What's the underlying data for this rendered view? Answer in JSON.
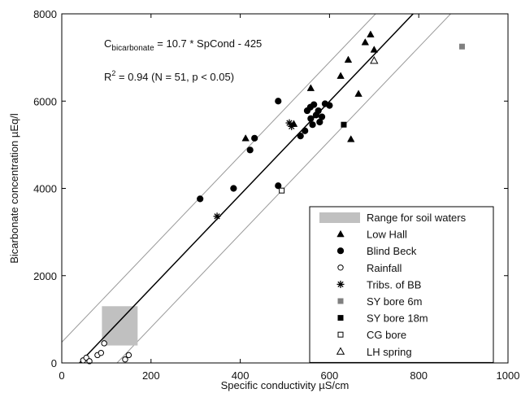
{
  "chart_data": {
    "type": "scatter",
    "xlabel": "Specific conductivity  µS/cm",
    "ylabel": "Bicarbonate concentration  µEq/l",
    "xlim": [
      0,
      1000
    ],
    "ylim": [
      0,
      8000
    ],
    "x_ticks": [
      "0",
      "200",
      "400",
      "600",
      "800",
      "1000"
    ],
    "y_ticks": [
      "0",
      "2000",
      "4000",
      "6000",
      "8000"
    ],
    "grid": false,
    "legend_position": "bottom-right",
    "annotations": {
      "eq_prefix": "C",
      "eq_sub": "bicarbonate",
      "eq_rest": " = 10.7 * SpCond - 425",
      "r2_prefix": "R",
      "r2_sup": "2",
      "r2_rest": " = 0.94 (N = 51, p < 0.05)"
    },
    "regression": {
      "slope": 10.7,
      "intercept": -425
    },
    "bounds": [
      {
        "slope": 10.7,
        "intercept": 475
      },
      {
        "slope": 10.7,
        "intercept": -1325
      }
    ],
    "soil_range": {
      "label": "Range for soil waters",
      "x": [
        90,
        170
      ],
      "y": [
        400,
        1300
      ]
    },
    "series": [
      {
        "name": "Low Hall",
        "marker": "triangle",
        "color": "#000000",
        "points": [
          [
            412,
            5150
          ],
          [
            520,
            5480
          ],
          [
            558,
            6300
          ],
          [
            625,
            6580
          ],
          [
            642,
            6950
          ],
          [
            648,
            5130
          ],
          [
            665,
            6170
          ],
          [
            680,
            7350
          ],
          [
            692,
            7530
          ],
          [
            700,
            7180
          ]
        ]
      },
      {
        "name": "Blind Beck",
        "marker": "circle",
        "color": "#000000",
        "points": [
          [
            310,
            3760
          ],
          [
            385,
            4000
          ],
          [
            422,
            4880
          ],
          [
            432,
            5150
          ],
          [
            485,
            6000
          ],
          [
            485,
            4060
          ],
          [
            535,
            5200
          ],
          [
            545,
            5320
          ],
          [
            550,
            5780
          ],
          [
            557,
            5860
          ],
          [
            558,
            5600
          ],
          [
            562,
            5460
          ],
          [
            565,
            5920
          ],
          [
            570,
            5680
          ],
          [
            575,
            5780
          ],
          [
            578,
            5520
          ],
          [
            583,
            5640
          ],
          [
            590,
            5940
          ],
          [
            600,
            5900
          ]
        ]
      },
      {
        "name": "Rainfall",
        "marker": "open-circle",
        "color": "#000000",
        "points": [
          [
            48,
            60
          ],
          [
            55,
            120
          ],
          [
            62,
            40
          ],
          [
            80,
            180
          ],
          [
            88,
            230
          ],
          [
            95,
            450
          ],
          [
            142,
            80
          ],
          [
            150,
            180
          ]
        ]
      },
      {
        "name": "Tribs. of BB",
        "marker": "asterisk",
        "color": "#000000",
        "points": [
          [
            348,
            3360
          ],
          [
            510,
            5500
          ],
          [
            515,
            5420
          ]
        ]
      },
      {
        "name": "SY bore 6m",
        "marker": "square",
        "color": "#808080",
        "points": [
          [
            897,
            7250
          ]
        ]
      },
      {
        "name": "SY bore 18m",
        "marker": "square",
        "color": "#000000",
        "points": [
          [
            632,
            5460
          ]
        ]
      },
      {
        "name": "CG bore",
        "marker": "open-square",
        "color": "#000000",
        "points": [
          [
            493,
            3950
          ]
        ]
      },
      {
        "name": "LH spring",
        "marker": "open-triangle",
        "color": "#000000",
        "points": [
          [
            700,
            6930
          ]
        ]
      }
    ]
  }
}
